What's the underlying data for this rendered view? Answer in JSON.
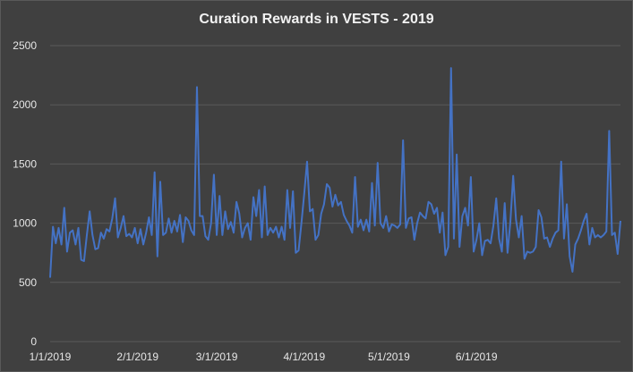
{
  "chart_data": {
    "type": "line",
    "title": "Curation Rewards in VESTS - 2019",
    "xlabel": "",
    "ylabel": "",
    "ylim": [
      0,
      2500
    ],
    "yticks": [
      0,
      500,
      1000,
      1500,
      2000,
      2500
    ],
    "xtick_labels": [
      "1/1/2019",
      "2/1/2019",
      "3/1/2019",
      "4/1/2019",
      "5/1/2019",
      "6/1/2019"
    ],
    "grid": true,
    "legend": "none",
    "line_color": "#4472c4",
    "series": [
      {
        "values": [
          540,
          970,
          830,
          960,
          820,
          1130,
          760,
          920,
          940,
          820,
          960,
          690,
          680,
          900,
          1100,
          900,
          780,
          790,
          920,
          870,
          950,
          930,
          1040,
          1210,
          880,
          960,
          1060,
          890,
          910,
          880,
          960,
          830,
          950,
          820,
          920,
          1050,
          900,
          1430,
          720,
          1350,
          900,
          920,
          1040,
          920,
          1020,
          930,
          1070,
          840,
          1050,
          1020,
          940,
          900,
          2150,
          1060,
          1060,
          890,
          860,
          1000,
          1410,
          900,
          1230,
          900,
          1100,
          950,
          1010,
          920,
          1180,
          1080,
          880,
          960,
          1000,
          860,
          1220,
          1060,
          1280,
          880,
          1310,
          900,
          960,
          920,
          970,
          880,
          970,
          860,
          1280,
          960,
          1270,
          750,
          770,
          1000,
          1250,
          1520,
          1100,
          1120,
          860,
          900,
          1080,
          1160,
          1330,
          1300,
          1140,
          1240,
          1150,
          1180,
          1070,
          1020,
          980,
          920,
          1390,
          970,
          1030,
          940,
          1030,
          930,
          1340,
          980,
          1510,
          1000,
          960,
          1060,
          930,
          990,
          980,
          960,
          990,
          1700,
          960,
          1040,
          1050,
          860,
          1000,
          1090,
          1060,
          1040,
          1180,
          1160,
          1080,
          1130,
          920,
          1090,
          730,
          800,
          2310,
          870,
          1580,
          800,
          1060,
          1130,
          980,
          1390,
          760,
          860,
          1000,
          730,
          850,
          860,
          830,
          980,
          1210,
          870,
          760,
          1170,
          750,
          1010,
          1400,
          1030,
          880,
          1060,
          700,
          760,
          750,
          760,
          800,
          1110,
          1050,
          870,
          880,
          800,
          870,
          920,
          940,
          1520,
          870,
          1160,
          720,
          590,
          820,
          870,
          940,
          1020,
          1080,
          820,
          960,
          880,
          900,
          880,
          900,
          930,
          1780,
          900,
          920,
          740,
          1020
        ]
      }
    ]
  }
}
